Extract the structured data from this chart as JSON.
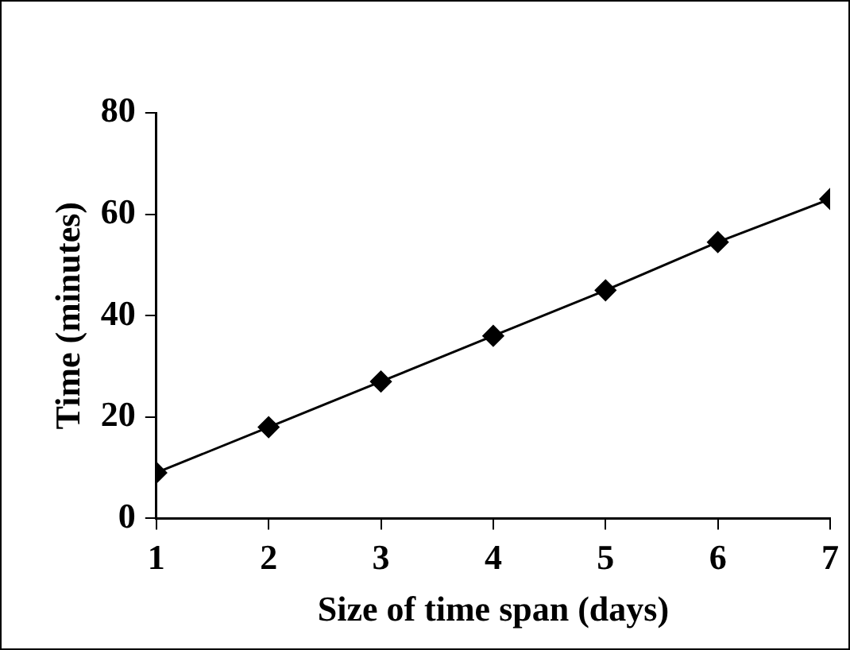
{
  "chart_data": {
    "type": "line",
    "xlabel": "Size of time span (days)",
    "ylabel": "Time (minutes)",
    "x": [
      1,
      2,
      3,
      4,
      5,
      6,
      7
    ],
    "series": [
      {
        "color": "#000000",
        "values": [
          9,
          18,
          27,
          36,
          45,
          54.5,
          63
        ]
      }
    ],
    "xlim": [
      1,
      7
    ],
    "xticks": [
      1,
      2,
      3,
      4,
      5,
      6,
      7
    ],
    "ylim": [
      0,
      80
    ],
    "yticks": [
      0,
      20,
      40,
      60,
      80
    ],
    "grid": false,
    "legend": false,
    "marker": "diamond",
    "line_style": "solid"
  }
}
